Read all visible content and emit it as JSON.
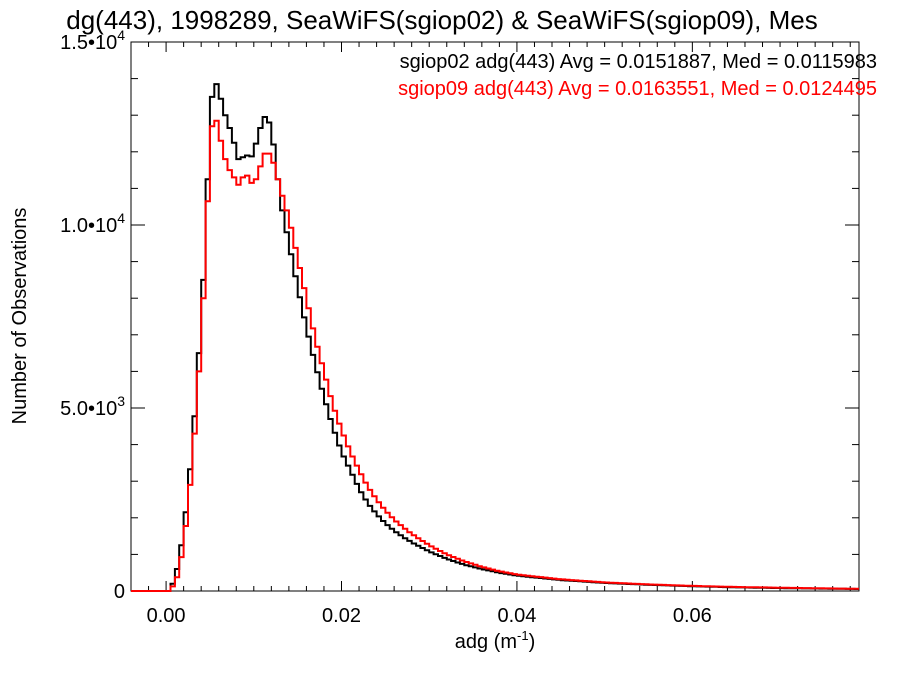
{
  "chart_data": {
    "type": "line",
    "title": "dg(443), 1998289, SeaWiFS(sgiop02) & SeaWiFS(sgiop09), Mes",
    "xlabel": "adg (m",
    "xlabel_sup": "-1",
    "xlabel_close": ")",
    "ylabel": "Number of Observations",
    "xlim": [
      -0.004,
      0.079
    ],
    "ylim": [
      0,
      15000
    ],
    "grid": false,
    "legend_position": "top-right",
    "x_ticks": [
      {
        "value": 0.0,
        "label": "0.00"
      },
      {
        "value": 0.02,
        "label": "0.02"
      },
      {
        "value": 0.04,
        "label": "0.04"
      },
      {
        "value": 0.06,
        "label": "0.06"
      }
    ],
    "y_ticks": [
      {
        "value": 0,
        "label": "0",
        "sup": ""
      },
      {
        "value": 5000,
        "label": "5.0•10",
        "sup": "3"
      },
      {
        "value": 10000,
        "label": "1.0•10",
        "sup": "4"
      },
      {
        "value": 15000,
        "label": "1.5•10",
        "sup": "4"
      }
    ],
    "series": [
      {
        "name": "sgiop02",
        "legend": "sgiop02 adg(443) Avg = 0.0151887, Med = 0.0115983",
        "color": "#000000",
        "points": [
          [
            -0.004,
            0
          ],
          [
            0.0005,
            0
          ],
          [
            0.0015,
            800
          ],
          [
            0.0025,
            2600
          ],
          [
            0.0035,
            5500
          ],
          [
            0.0045,
            9500
          ],
          [
            0.005,
            13000
          ],
          [
            0.0055,
            14000
          ],
          [
            0.006,
            13700
          ],
          [
            0.0065,
            13200
          ],
          [
            0.007,
            12800
          ],
          [
            0.0075,
            12500
          ],
          [
            0.008,
            12000
          ],
          [
            0.0085,
            11600
          ],
          [
            0.009,
            12100
          ],
          [
            0.0095,
            11700
          ],
          [
            0.0105,
            12400
          ],
          [
            0.011,
            12900
          ],
          [
            0.0115,
            13000
          ],
          [
            0.012,
            12600
          ],
          [
            0.0125,
            11800
          ],
          [
            0.013,
            10700
          ],
          [
            0.014,
            9500
          ],
          [
            0.015,
            8300
          ],
          [
            0.016,
            7200
          ],
          [
            0.017,
            6200
          ],
          [
            0.018,
            5300
          ],
          [
            0.019,
            4500
          ],
          [
            0.02,
            3800
          ],
          [
            0.021,
            3300
          ],
          [
            0.022,
            2800
          ],
          [
            0.023,
            2400
          ],
          [
            0.024,
            2100
          ],
          [
            0.025,
            1850
          ],
          [
            0.026,
            1650
          ],
          [
            0.027,
            1480
          ],
          [
            0.028,
            1330
          ],
          [
            0.03,
            1080
          ],
          [
            0.032,
            880
          ],
          [
            0.034,
            720
          ],
          [
            0.036,
            600
          ],
          [
            0.038,
            500
          ],
          [
            0.04,
            420
          ],
          [
            0.045,
            300
          ],
          [
            0.05,
            220
          ],
          [
            0.055,
            170
          ],
          [
            0.06,
            130
          ],
          [
            0.065,
            100
          ],
          [
            0.07,
            80
          ],
          [
            0.075,
            65
          ],
          [
            0.079,
            55
          ]
        ]
      },
      {
        "name": "sgiop09",
        "legend": "sgiop09 adg(443) Avg = 0.0163551, Med = 0.0124495",
        "color": "#ff0000",
        "points": [
          [
            -0.004,
            0
          ],
          [
            0.0005,
            0
          ],
          [
            0.0015,
            500
          ],
          [
            0.0025,
            2200
          ],
          [
            0.0035,
            5000
          ],
          [
            0.0045,
            9000
          ],
          [
            0.005,
            12300
          ],
          [
            0.0055,
            13100
          ],
          [
            0.006,
            12600
          ],
          [
            0.0065,
            12000
          ],
          [
            0.007,
            11600
          ],
          [
            0.0075,
            11400
          ],
          [
            0.008,
            11200
          ],
          [
            0.0085,
            11000
          ],
          [
            0.009,
            11600
          ],
          [
            0.0095,
            11100
          ],
          [
            0.0105,
            11300
          ],
          [
            0.011,
            11900
          ],
          [
            0.0115,
            12000
          ],
          [
            0.012,
            11900
          ],
          [
            0.0125,
            11500
          ],
          [
            0.013,
            11000
          ],
          [
            0.014,
            10200
          ],
          [
            0.015,
            9100
          ],
          [
            0.016,
            8000
          ],
          [
            0.017,
            6900
          ],
          [
            0.018,
            6000
          ],
          [
            0.019,
            5100
          ],
          [
            0.02,
            4400
          ],
          [
            0.021,
            3800
          ],
          [
            0.022,
            3300
          ],
          [
            0.023,
            2850
          ],
          [
            0.024,
            2500
          ],
          [
            0.025,
            2200
          ],
          [
            0.026,
            1950
          ],
          [
            0.027,
            1750
          ],
          [
            0.028,
            1560
          ],
          [
            0.03,
            1250
          ],
          [
            0.032,
            1000
          ],
          [
            0.034,
            810
          ],
          [
            0.036,
            660
          ],
          [
            0.038,
            540
          ],
          [
            0.04,
            450
          ],
          [
            0.045,
            320
          ],
          [
            0.05,
            235
          ],
          [
            0.055,
            180
          ],
          [
            0.06,
            140
          ],
          [
            0.065,
            110
          ],
          [
            0.07,
            90
          ],
          [
            0.075,
            72
          ],
          [
            0.079,
            60
          ]
        ]
      }
    ]
  }
}
